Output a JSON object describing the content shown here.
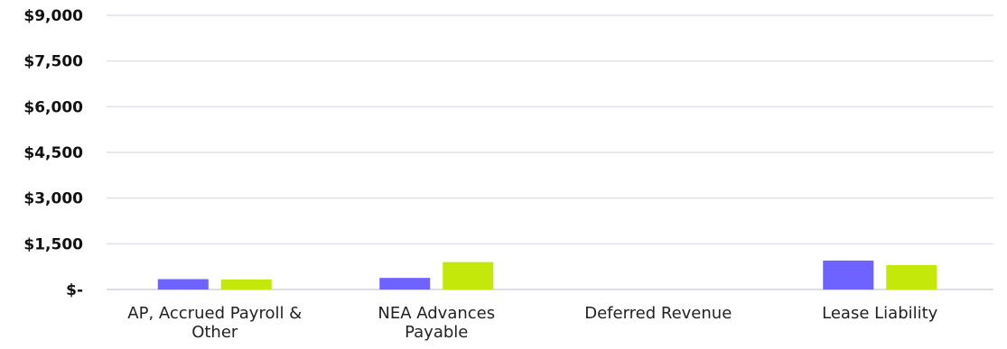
{
  "colors": {
    "series_1": "#6f63ff",
    "series_2": "#c5e80b",
    "grid": "#dfe2e8"
  },
  "chart_data": {
    "type": "bar",
    "title": "",
    "xlabel": "",
    "ylabel": "",
    "ylim": [
      0,
      9000
    ],
    "yticks": [
      0,
      1500,
      3000,
      4500,
      6000,
      7500,
      9000
    ],
    "ytick_labels": [
      "$-",
      "$1,500",
      "$3,000",
      "$4,500",
      "$6,000",
      "$7,500",
      "$9,000"
    ],
    "categories": [
      [
        "AP, Accrued Payroll &",
        "Other"
      ],
      [
        "NEA Advances",
        "Payable"
      ],
      [
        "Deferred Revenue"
      ],
      [
        "Lease Liability"
      ]
    ],
    "series": [
      {
        "values": [
          340,
          380,
          0,
          950
        ]
      },
      {
        "values": [
          330,
          900,
          0,
          800
        ]
      }
    ],
    "grid": true,
    "legend": "none"
  }
}
